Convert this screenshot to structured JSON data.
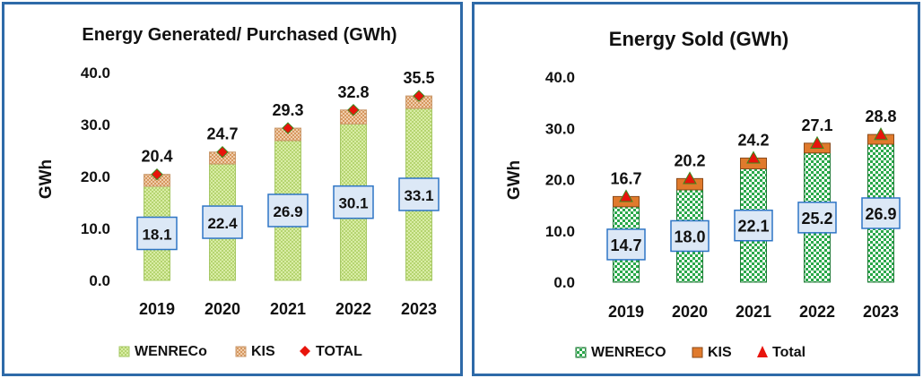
{
  "colors": {
    "panel_border": "#2e6aa8",
    "wenreco_fill_left": "#c9e48a",
    "kis_fill_left": "#f2c9a0",
    "total_marker_left": "#e8140c",
    "wenreco_fill_right": "#2aa84a",
    "kis_fill_right": "#e07a2c",
    "total_marker_right": "#e8140c",
    "label_box_fill": "#dce8f6",
    "label_box_stroke": "#2e75c5"
  },
  "chart_data": [
    {
      "type": "bar",
      "stacked": true,
      "title": "Energy Generated/ Purchased (GWh)",
      "ylabel": "GWh",
      "ylim": [
        0,
        40
      ],
      "yticks": [
        "0.0",
        "10.0",
        "20.0",
        "30.0",
        "40.0"
      ],
      "categories": [
        "2019",
        "2020",
        "2021",
        "2022",
        "2023"
      ],
      "series": [
        {
          "name": "WENRECo",
          "values": [
            18.1,
            22.4,
            26.9,
            30.1,
            33.1
          ],
          "labels": [
            "18.1",
            "22.4",
            "26.9",
            "30.1",
            "33.1"
          ]
        },
        {
          "name": "KIS",
          "values": [
            2.3,
            2.3,
            2.4,
            2.7,
            2.4
          ]
        },
        {
          "name": "TOTAL",
          "values": [
            20.4,
            24.7,
            29.3,
            32.8,
            35.5
          ],
          "labels": [
            "20.4",
            "24.7",
            "29.3",
            "32.8",
            "35.5"
          ]
        }
      ],
      "legend": "bottom",
      "grid": false
    },
    {
      "type": "bar",
      "stacked": true,
      "title": "Energy Sold (GWh)",
      "ylabel": "GWh",
      "ylim": [
        0,
        40
      ],
      "yticks": [
        "0.0",
        "10.0",
        "20.0",
        "30.0",
        "40.0"
      ],
      "categories": [
        "2019",
        "2020",
        "2021",
        "2022",
        "2023"
      ],
      "series": [
        {
          "name": "WENRECO",
          "values": [
            14.7,
            18.0,
            22.1,
            25.2,
            26.9
          ],
          "labels": [
            "14.7",
            "18.0",
            "22.1",
            "25.2",
            "26.9"
          ]
        },
        {
          "name": "KIS",
          "values": [
            2.0,
            2.2,
            2.1,
            1.9,
            1.9
          ]
        },
        {
          "name": "Total",
          "values": [
            16.7,
            20.2,
            24.2,
            27.1,
            28.8
          ],
          "labels": [
            "16.7",
            "20.2",
            "24.2",
            "27.1",
            "28.8"
          ]
        }
      ],
      "legend": "bottom",
      "grid": false
    }
  ]
}
